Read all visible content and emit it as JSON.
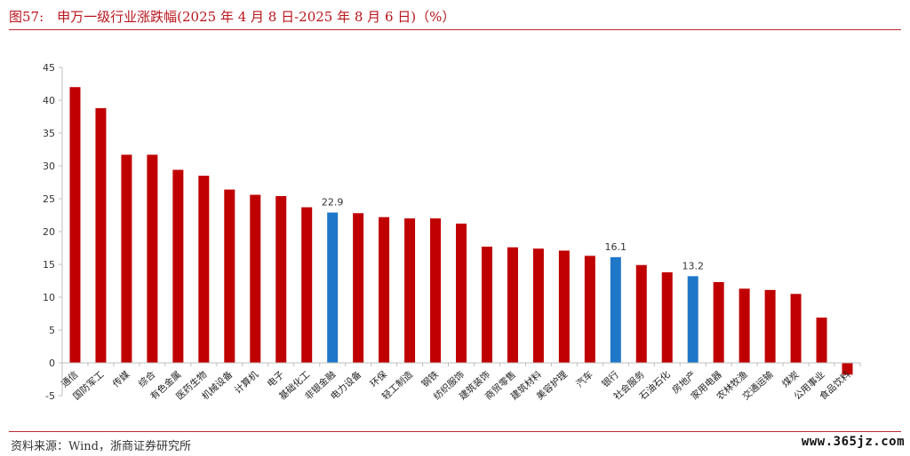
{
  "figure_title": "图57:　申万一级行业涨跌幅(2025 年 4 月 8 日-2025 年 8 月 6 日)（%）",
  "source_note": "资料来源：Wind，浙商证券研究所",
  "watermark": "www.365jz.com",
  "colors": {
    "default_bar": "#c00000",
    "highlight_bar": "#1f77c9",
    "rule": "#c0282d"
  },
  "chart_data": {
    "type": "bar",
    "title": "申万一级行业涨跌幅(2025 年 4 月 8 日-2025 年 8 月 6 日)（%）",
    "ylim": [
      -5,
      45
    ],
    "yticks": [
      -5,
      0,
      5,
      10,
      15,
      20,
      25,
      30,
      35,
      40,
      45
    ],
    "grid": false,
    "legend": "none",
    "categories": [
      "通信",
      "国防军工",
      "传媒",
      "综合",
      "有色金属",
      "医药生物",
      "机械设备",
      "计算机",
      "电子",
      "基础化工",
      "非银金融",
      "电力设备",
      "环保",
      "轻工制造",
      "钢铁",
      "纺织服饰",
      "建筑装饰",
      "商贸零售",
      "建筑材料",
      "美容护理",
      "汽车",
      "银行",
      "社会服务",
      "石油石化",
      "房地产",
      "家用电器",
      "农林牧渔",
      "交通运输",
      "煤炭",
      "公用事业",
      "食品饮料"
    ],
    "values": [
      42.0,
      38.8,
      31.7,
      31.7,
      29.4,
      28.5,
      26.4,
      25.6,
      25.4,
      23.7,
      22.9,
      22.8,
      22.2,
      22.0,
      22.0,
      21.2,
      17.7,
      17.6,
      17.4,
      17.1,
      16.3,
      16.1,
      14.9,
      13.8,
      13.2,
      12.3,
      11.3,
      11.1,
      10.5,
      6.9,
      -1.8
    ],
    "highlighted": [
      "非银金融",
      "银行",
      "房地产"
    ],
    "data_labels": [
      {
        "category": "非银金融",
        "label": "22.9"
      },
      {
        "category": "银行",
        "label": "16.1"
      },
      {
        "category": "房地产",
        "label": "13.2"
      }
    ]
  }
}
